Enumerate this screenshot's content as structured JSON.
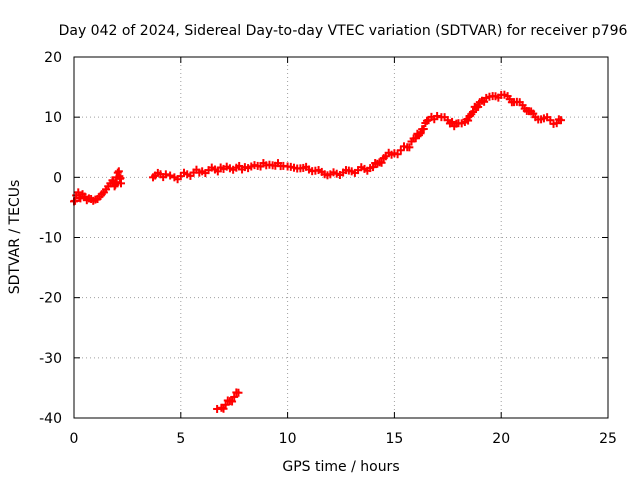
{
  "chart_data": {
    "type": "scatter",
    "title": "Day 042 of 2024, Sidereal Day-to-day VTEC variation (SDTVAR) for receiver p796",
    "xlabel": "GPS time / hours",
    "ylabel": "SDTVAR / TECUs",
    "xlim": [
      0,
      25
    ],
    "ylim": [
      -40,
      20
    ],
    "xticks": [
      0,
      5,
      10,
      15,
      20,
      25
    ],
    "yticks": [
      -40,
      -30,
      -20,
      -10,
      0,
      10,
      20
    ],
    "xtick_labels": [
      "0",
      "5",
      "10",
      "15",
      "20",
      "25"
    ],
    "ytick_labels": [
      "-40",
      "-30",
      "-20",
      "-10",
      "0",
      "10",
      "20"
    ],
    "grid": true,
    "marker": "plus",
    "series": [
      {
        "name": "SDTVAR",
        "color": "#ff0000",
        "x": [
          0.0,
          0.1,
          0.2,
          0.3,
          0.4,
          0.5,
          0.6,
          0.7,
          0.8,
          0.9,
          1.0,
          1.1,
          1.2,
          1.3,
          1.4,
          1.5,
          1.6,
          1.7,
          1.8,
          1.9,
          2.0,
          2.1,
          2.2,
          3.7,
          3.8,
          4.3,
          4.5,
          4.7,
          5.0,
          5.3,
          5.6,
          6.0,
          6.3,
          6.6,
          7.0,
          7.3,
          7.6,
          8.0,
          8.3,
          8.6,
          9.0,
          9.3,
          9.8,
          10.0,
          10.3,
          10.6,
          11.0,
          11.3,
          11.6,
          12.0,
          12.3,
          12.6,
          13.0,
          13.3,
          13.6,
          14.0,
          14.3,
          14.6,
          15.0,
          15.3,
          15.6,
          16.0,
          16.3,
          16.6,
          17.0,
          17.2,
          17.5,
          17.8,
          18.0,
          18.3,
          18.6,
          19.0,
          19.3,
          19.6,
          20.0,
          20.3,
          20.6,
          21.0,
          21.3,
          21.6,
          22.0,
          22.3,
          22.6,
          22.8,
          6.7,
          6.9,
          7.1,
          7.3,
          7.5,
          7.7
        ],
        "y": [
          -4.0,
          -3.0,
          -2.5,
          -3.5,
          -2.8,
          -3.2,
          -3.8,
          -3.5,
          -3.6,
          -3.9,
          -3.7,
          -3.6,
          -3.2,
          -2.8,
          -2.5,
          -2.0,
          -1.5,
          -1.0,
          -0.5,
          -1.5,
          0.0,
          1.0,
          -1.0,
          0.0,
          0.3,
          0.5,
          0.3,
          0.0,
          0.2,
          0.5,
          0.8,
          1.0,
          1.2,
          1.3,
          1.4,
          1.5,
          1.6,
          1.7,
          1.8,
          1.9,
          2.0,
          2.0,
          1.9,
          1.8,
          1.6,
          1.5,
          1.3,
          1.1,
          0.9,
          0.5,
          0.6,
          0.8,
          1.0,
          1.2,
          1.4,
          1.7,
          2.5,
          3.5,
          4.0,
          4.5,
          5.0,
          6.5,
          8.0,
          9.5,
          10.2,
          10.0,
          9.5,
          8.5,
          9.0,
          9.2,
          10.5,
          12.5,
          13.2,
          13.5,
          13.7,
          13.5,
          12.5,
          12.0,
          11.0,
          10.0,
          9.8,
          9.5,
          9.0,
          9.5,
          -38.5,
          -38.3,
          -37.8,
          -37.2,
          -36.5,
          -35.8
        ]
      }
    ]
  }
}
